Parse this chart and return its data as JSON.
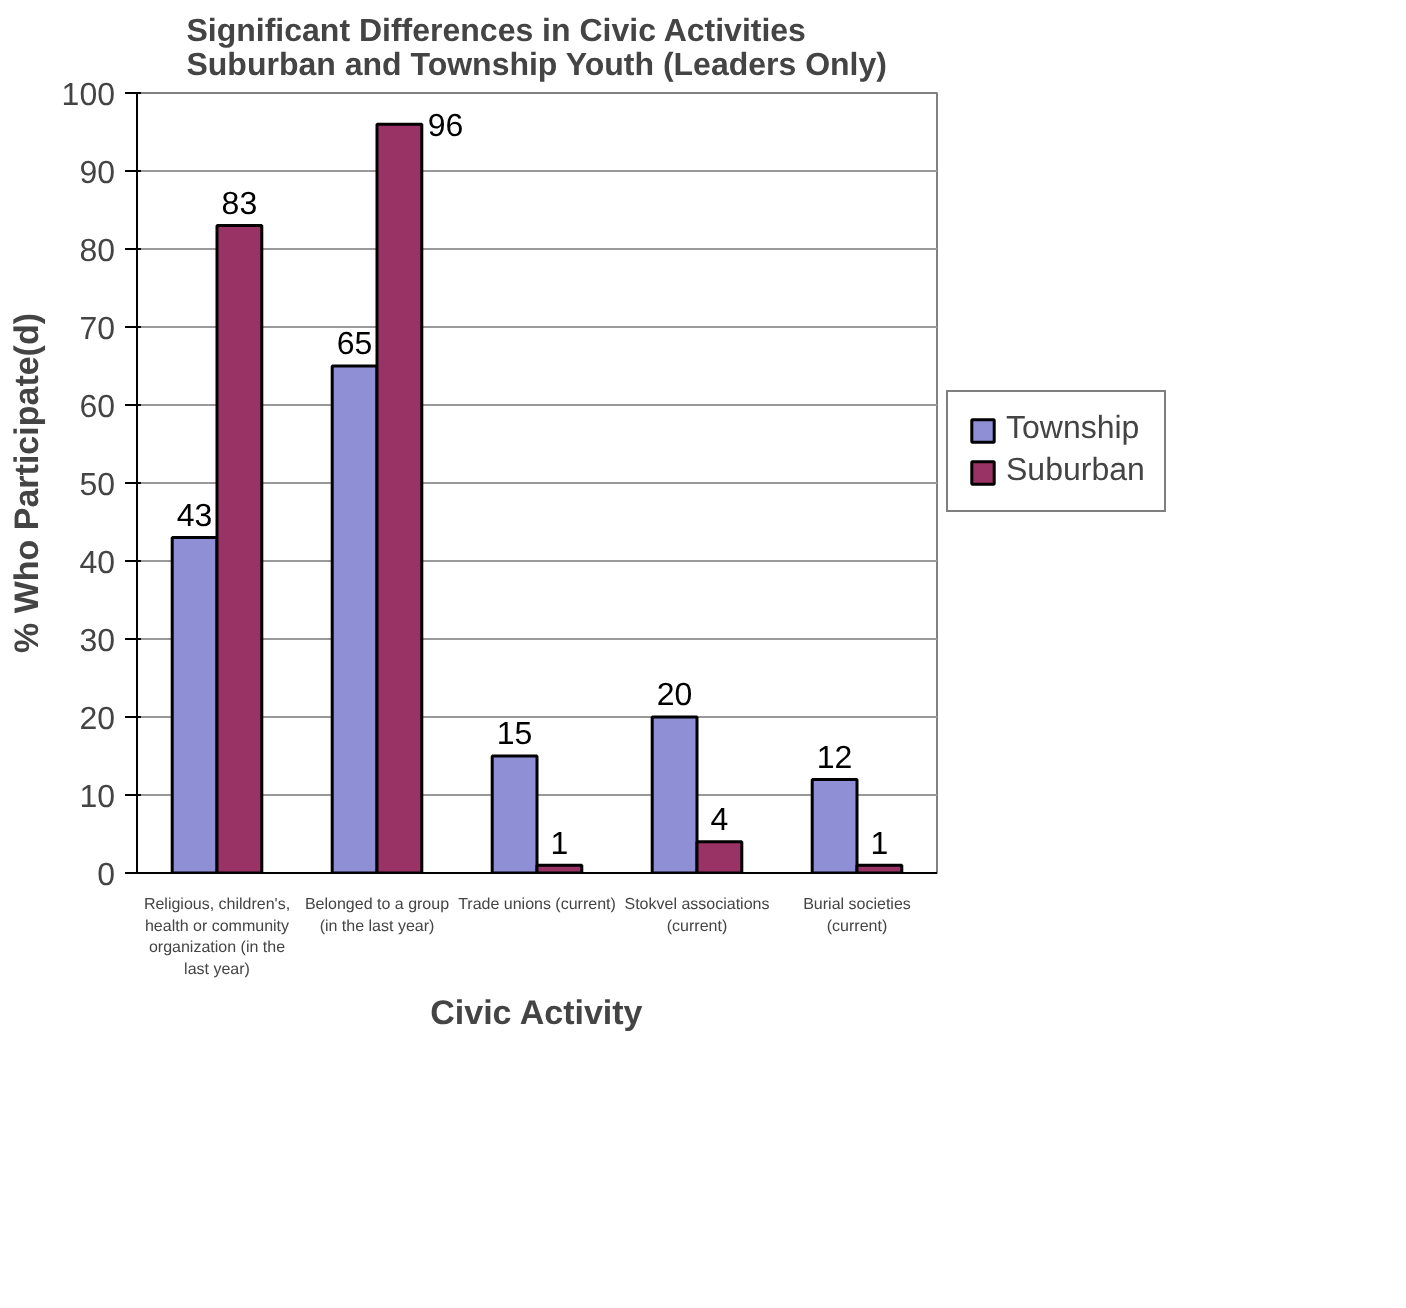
{
  "chart_data": {
    "type": "bar",
    "title": "Significant Differences in Civic Activities\nSuburban and Township Youth (Leaders Only)",
    "xlabel": "Civic Activity",
    "ylabel": "% Who Participate(d)",
    "categories": [
      "Religious, children's, health or community organization (in the last year)",
      "Belonged to a group (in the last year)",
      "Trade unions (current)",
      "Stokvel associations (current)",
      "Burial societies (current)"
    ],
    "series": [
      {
        "name": "Township",
        "color": "#8f8fd6",
        "values": [
          43,
          65,
          15,
          20,
          12
        ]
      },
      {
        "name": "Suburban",
        "color": "#993366",
        "values": [
          83,
          96,
          1,
          4,
          1
        ]
      }
    ],
    "ylim": [
      0,
      100
    ],
    "yticks": [
      0,
      10,
      20,
      30,
      40,
      50,
      60,
      70,
      80,
      90,
      100
    ],
    "grid": "y",
    "legend": "right",
    "data_labels": true
  }
}
